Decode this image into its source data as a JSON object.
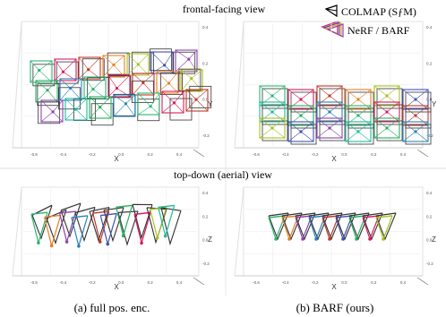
{
  "figure": {
    "row_titles": [
      "frontal-facing view",
      "top-down (aerial) view"
    ],
    "captions": [
      "(a) full pos. enc.",
      "(b) BARF (ours)"
    ],
    "legend": {
      "colmap_label": "COLMAP (SƒM)",
      "nerf_label": "NeRF / BARF"
    }
  },
  "axes": {
    "x_label": "X",
    "y_label": "Y",
    "z_label": "Z",
    "x_ticks": [
      "-0.6",
      "-0.4",
      "-0.2",
      "0.0",
      "0.2",
      "0.4"
    ],
    "y_ticks": [
      "0.4",
      "0.2",
      "0.0",
      "-0.2"
    ],
    "z_ticks": [
      "0.4",
      "0.2",
      "0.0",
      "-0.2"
    ]
  },
  "colors": {
    "colmap_frame": "#333333",
    "palette": [
      "#2bb673",
      "#d81b60",
      "#c0392b",
      "#e67e22",
      "#a8c023",
      "#3f51b5",
      "#8e44ad",
      "#1abc9c",
      "#27ae60",
      "#2980b9"
    ]
  },
  "panels": [
    {
      "id": "frontal-full-pos-enc",
      "row": 0,
      "col": 0,
      "aligned": false
    },
    {
      "id": "frontal-barf",
      "row": 0,
      "col": 1,
      "aligned": true
    },
    {
      "id": "topdown-full-pos-enc",
      "row": 1,
      "col": 0,
      "aligned": false
    },
    {
      "id": "topdown-barf",
      "row": 1,
      "col": 1,
      "aligned": true
    }
  ]
}
